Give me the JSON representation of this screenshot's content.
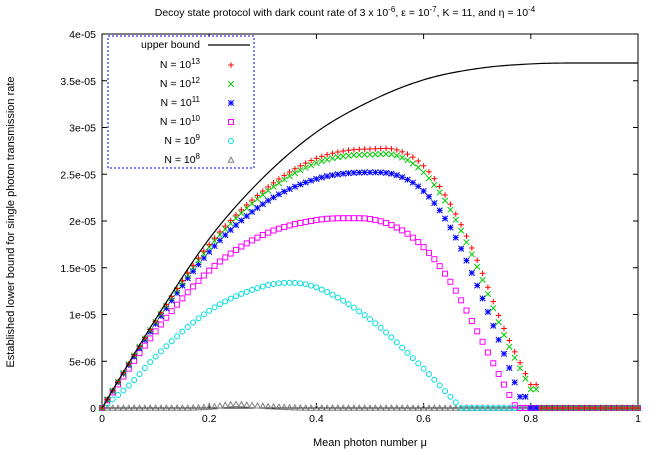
{
  "chart_data": {
    "type": "scatter",
    "title": {
      "prefix": "Decoy state protocol with dark count rate of 3 x 10",
      "dc_exp": "-6",
      "eps_part": ", ε = 10",
      "eps_exp": "-7",
      "k_part": ", K = 11, and η = 10",
      "eta_exp": "-4"
    },
    "xlabel": "Mean photon number μ",
    "ylabel": "Established lower bound for single photon transmission rate",
    "xlim": [
      0,
      1
    ],
    "ylim": [
      0,
      4e-05
    ],
    "x_ticks": [
      "0",
      "0.2",
      "0.4",
      "0.6",
      "0.8",
      "1"
    ],
    "y_ticks": [
      "0",
      "5e-06",
      "1e-05",
      "1.5e-05",
      "2e-05",
      "2.5e-05",
      "3e-05",
      "3.5e-05",
      "4e-05"
    ],
    "legend_position": "top-left",
    "upper_bound": {
      "label": "upper bound",
      "color": "#000000",
      "points": [
        [
          0,
          0
        ],
        [
          0.1,
          9.5e-06
        ],
        [
          0.2,
          1.81e-05
        ],
        [
          0.3,
          2.46e-05
        ],
        [
          0.4,
          2.95e-05
        ],
        [
          0.5,
          3.28e-05
        ],
        [
          0.6,
          3.51e-05
        ],
        [
          0.7,
          3.63e-05
        ],
        [
          0.8,
          3.68e-05
        ],
        [
          0.9,
          3.69e-05
        ],
        [
          1.0,
          3.69e-05
        ]
      ]
    },
    "series": [
      {
        "base": "N = 10",
        "exp": "13",
        "marker": "plus",
        "color": "#ff0000",
        "cutoff": 0.81,
        "points": [
          [
            0,
            0
          ],
          [
            0.1,
            9.3e-06
          ],
          [
            0.2,
            1.75e-05
          ],
          [
            0.3,
            2.32e-05
          ],
          [
            0.4,
            2.67e-05
          ],
          [
            0.5,
            2.77e-05
          ],
          [
            0.55,
            2.76e-05
          ],
          [
            0.6,
            2.59e-05
          ],
          [
            0.65,
            2.18e-05
          ],
          [
            0.7,
            1.58e-05
          ],
          [
            0.75,
            8.5e-06
          ],
          [
            0.8,
            2.5e-06
          ]
        ]
      },
      {
        "base": "N = 10",
        "exp": "12",
        "marker": "cross",
        "color": "#00cc00",
        "cutoff": 0.81,
        "points": [
          [
            0,
            0
          ],
          [
            0.1,
            9.2e-06
          ],
          [
            0.2,
            1.72e-05
          ],
          [
            0.3,
            2.28e-05
          ],
          [
            0.4,
            2.62e-05
          ],
          [
            0.5,
            2.71e-05
          ],
          [
            0.55,
            2.7e-05
          ],
          [
            0.6,
            2.52e-05
          ],
          [
            0.65,
            2.12e-05
          ],
          [
            0.7,
            1.51e-05
          ],
          [
            0.75,
            7.8e-06
          ],
          [
            0.8,
            2e-06
          ]
        ]
      },
      {
        "base": "N = 10",
        "exp": "11",
        "marker": "star",
        "color": "#0000ff",
        "cutoff": 0.79,
        "points": [
          [
            0,
            0
          ],
          [
            0.1,
            9e-06
          ],
          [
            0.2,
            1.67e-05
          ],
          [
            0.3,
            2.18e-05
          ],
          [
            0.4,
            2.45e-05
          ],
          [
            0.5,
            2.52e-05
          ],
          [
            0.55,
            2.49e-05
          ],
          [
            0.6,
            2.32e-05
          ],
          [
            0.65,
            1.93e-05
          ],
          [
            0.7,
            1.31e-05
          ],
          [
            0.75,
            5.8e-06
          ],
          [
            0.78,
            1.2e-06
          ]
        ]
      },
      {
        "base": "N = 10",
        "exp": "10",
        "marker": "square",
        "color": "#ff00ff",
        "cutoff": 0.775,
        "points": [
          [
            0,
            0
          ],
          [
            0.1,
            8.2e-06
          ],
          [
            0.2,
            1.47e-05
          ],
          [
            0.3,
            1.85e-05
          ],
          [
            0.4,
            2.01e-05
          ],
          [
            0.48,
            2.03e-05
          ],
          [
            0.55,
            1.93e-05
          ],
          [
            0.6,
            1.72e-05
          ],
          [
            0.65,
            1.35e-05
          ],
          [
            0.7,
            8.2e-06
          ],
          [
            0.75,
            2.5e-06
          ],
          [
            0.77,
            3e-07
          ]
        ]
      },
      {
        "base": "N = 10",
        "exp": "9",
        "marker": "circle",
        "color": "#00dddd",
        "cutoff": 0.675,
        "points": [
          [
            0,
            0
          ],
          [
            0.05,
            2.4e-06
          ],
          [
            0.1,
            5.5e-06
          ],
          [
            0.2,
            1.04e-05
          ],
          [
            0.3,
            1.3e-05
          ],
          [
            0.35,
            1.34e-05
          ],
          [
            0.4,
            1.29e-05
          ],
          [
            0.5,
            9.5e-06
          ],
          [
            0.6,
            4.2e-06
          ],
          [
            0.65,
            1.2e-06
          ],
          [
            0.67,
            0
          ]
        ]
      },
      {
        "base": "N = 10",
        "exp": "8",
        "marker": "triangle",
        "color": "#808080",
        "cutoff": 1.0,
        "points": [
          [
            0,
            0
          ],
          [
            0.2,
            1e-07
          ],
          [
            0.25,
            4e-07
          ],
          [
            0.3,
            2e-07
          ],
          [
            0.4,
            0
          ],
          [
            1.0,
            0
          ]
        ]
      }
    ]
  }
}
